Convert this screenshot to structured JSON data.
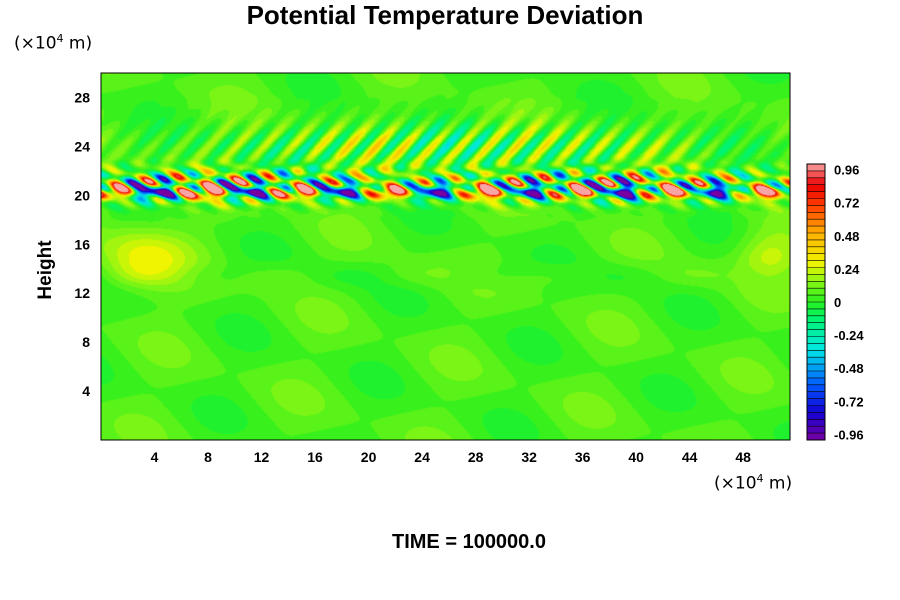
{
  "chart_data": {
    "type": "heatmap",
    "title": "Potential Temperature Deviation",
    "ylabel": "Height",
    "xunit_prefix": "(×10",
    "xunit_exp": "4",
    "xunit_suffix": " m)",
    "yunit_prefix": "(×10",
    "yunit_exp": "4",
    "yunit_suffix": " m)",
    "xlim": [
      0,
      51.5
    ],
    "ylim": [
      0,
      30
    ],
    "xticks": [
      "4",
      "8",
      "12",
      "16",
      "20",
      "24",
      "28",
      "32",
      "36",
      "40",
      "44",
      "48"
    ],
    "yticks": [
      "4",
      "8",
      "12",
      "16",
      "20",
      "24",
      "28"
    ],
    "colorbar": {
      "min": -1.0,
      "max": 1.0,
      "levels": 40,
      "tick_values": [
        0.96,
        0.72,
        0.48,
        0.24,
        0,
        -0.24,
        -0.48,
        -0.72,
        -0.96
      ],
      "tick_labels": [
        "0.96",
        "0.72",
        "0.48",
        "0.24",
        "0",
        "-0.24",
        "-0.48",
        "-0.72",
        "-0.96"
      ]
    },
    "features": [
      {
        "description": "strong wave band",
        "y_range": [
          19.5,
          22.5
        ],
        "amplitude": 1.0
      },
      {
        "description": "weaker ripples above band",
        "y_range": [
          22.5,
          26
        ],
        "amplitude": 0.35
      },
      {
        "description": "warm patch left",
        "x_range": [
          0,
          8
        ],
        "y_range": [
          12,
          18
        ],
        "value": 0.25
      },
      {
        "description": "warm patch right",
        "x_range": [
          46,
          51.5
        ],
        "y_range": [
          12,
          18
        ],
        "value": 0.2
      }
    ],
    "time_label": "TIME = 100000.0"
  }
}
